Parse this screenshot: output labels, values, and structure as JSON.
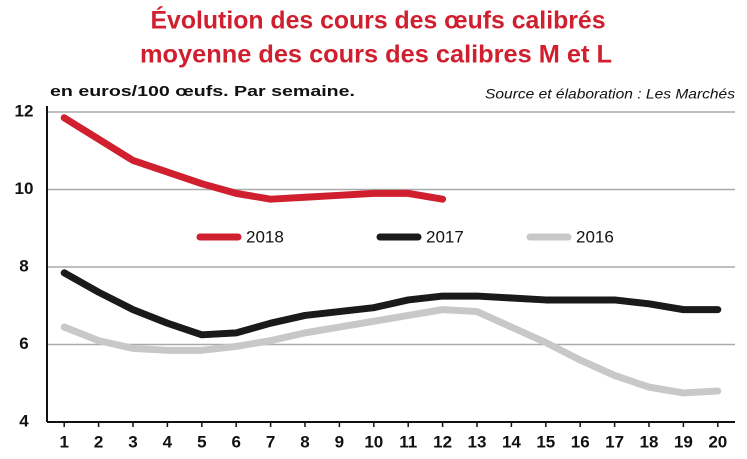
{
  "chart_data": {
    "type": "line",
    "title": "Évolution des cours des œufs calibrés",
    "subtitle": "moyenne des cours des calibres M et L",
    "y_label": "en euros/100 œufs. Par semaine.",
    "source": "Source et élaboration : Les Marchés",
    "x": [
      1,
      2,
      3,
      4,
      5,
      6,
      7,
      8,
      9,
      10,
      11,
      12,
      13,
      14,
      15,
      16,
      17,
      18,
      19,
      20
    ],
    "xlim": [
      0.5,
      20.5
    ],
    "xticks": [
      1,
      2,
      3,
      4,
      5,
      6,
      7,
      8,
      9,
      10,
      11,
      12,
      13,
      14,
      15,
      16,
      17,
      18,
      19,
      20
    ],
    "ylim": [
      4,
      12
    ],
    "yticks": [
      4,
      6,
      8,
      10,
      12
    ],
    "grid": true,
    "legend": "center",
    "series": [
      {
        "name": "2018",
        "color": "#d0202f",
        "values": [
          11.85,
          11.3,
          10.75,
          10.45,
          10.15,
          9.9,
          9.75,
          9.8,
          9.85,
          9.9,
          9.9,
          9.75,
          null,
          null,
          null,
          null,
          null,
          null,
          null,
          null
        ]
      },
      {
        "name": "2017",
        "color": "#1a1a1a",
        "values": [
          7.85,
          7.35,
          6.9,
          6.55,
          6.25,
          6.3,
          6.55,
          6.75,
          6.85,
          6.95,
          7.15,
          7.25,
          7.25,
          7.2,
          7.15,
          7.15,
          7.15,
          7.05,
          6.9,
          6.9
        ]
      },
      {
        "name": "2016",
        "color": "#c8c8c8",
        "values": [
          6.45,
          6.1,
          5.9,
          5.85,
          5.85,
          5.95,
          6.1,
          6.3,
          6.45,
          6.6,
          6.75,
          6.9,
          6.85,
          6.45,
          6.05,
          5.6,
          5.2,
          4.9,
          4.75,
          4.8
        ]
      }
    ]
  }
}
